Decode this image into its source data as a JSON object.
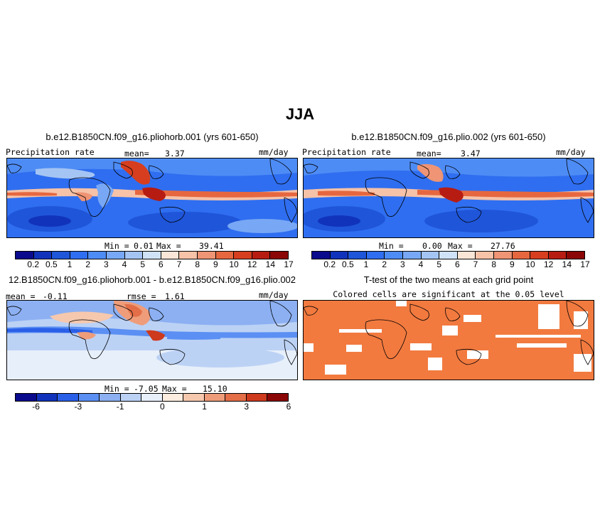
{
  "main_title": "JJA",
  "colors": {
    "precip_scale": [
      "#0a0a8c",
      "#1133bb",
      "#1f55d9",
      "#2f6ef0",
      "#4e8cf5",
      "#78a8f5",
      "#a4c4f3",
      "#d0e2f7",
      "#fae6d6",
      "#f6c2a8",
      "#ef9474",
      "#e6673f",
      "#d63e1f",
      "#b71c12",
      "#8b0606"
    ],
    "diff_scale": [
      "#0a0a8c",
      "#1133bb",
      "#2a5fe8",
      "#5b8ff3",
      "#8cb0f2",
      "#bcd2f5",
      "#e7effa",
      "#fdece0",
      "#f6c8ae",
      "#ee9c7a",
      "#e36e48",
      "#cd3a1d",
      "#8b0606"
    ],
    "significant": "#f27a3f"
  },
  "panels": [
    {
      "title": "b.e12.B1850CN.f09_g16.pliohorb.001 (yrs 601-650)",
      "var_label": "Precipitation rate",
      "stat_label": "mean=",
      "stat_value": "3.37",
      "units": "mm/day",
      "min_label": "Min =",
      "min_value": "0.01",
      "max_label": "Max =",
      "max_value": "39.41",
      "ticks": [
        "0.2",
        "0.5",
        "1",
        "2",
        "3",
        "4",
        "5",
        "6",
        "7",
        "8",
        "9",
        "10",
        "12",
        "14",
        "17"
      ]
    },
    {
      "title": "b.e12.B1850CN.f09_g16.plio.002 (yrs 601-650)",
      "var_label": "Precipitation rate",
      "stat_label": "mean=",
      "stat_value": "3.47",
      "units": "mm/day",
      "min_label": "Min =",
      "min_value": "0.00",
      "max_label": "Max =",
      "max_value": "27.76",
      "ticks": [
        "0.2",
        "0.5",
        "1",
        "2",
        "3",
        "4",
        "5",
        "6",
        "7",
        "8",
        "9",
        "10",
        "12",
        "14",
        "17"
      ]
    },
    {
      "title": "12.B1850CN.f09_g16.pliohorb.001 - b.e12.B1850CN.f09_g16.plio.002",
      "mean_label": "mean =",
      "mean_value": "-0.11",
      "rmse_label": "rmse =",
      "rmse_value": "1.61",
      "units": "mm/day",
      "min_label": "Min =",
      "min_value": "-7.05",
      "max_label": "Max =",
      "max_value": "15.10",
      "ticks": [
        "-6",
        "-3",
        "-1",
        "0",
        "1",
        "3",
        "6"
      ]
    },
    {
      "title": "T-test of the two means at each grid point",
      "subtitle": "Colored cells are significant at the 0.05 level"
    }
  ]
}
